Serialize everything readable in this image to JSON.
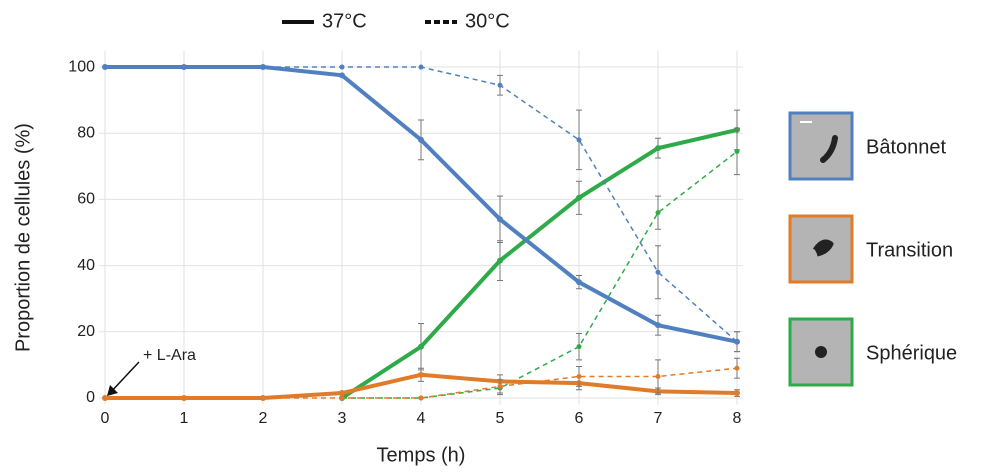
{
  "chart_data": {
    "type": "line",
    "xlabel": "Temps (h)",
    "ylabel": "Proportion de cellules (%)",
    "x": [
      0,
      1,
      2,
      3,
      4,
      5,
      6,
      7,
      8
    ],
    "xlim": [
      0,
      8
    ],
    "xticks": [
      0,
      1,
      2,
      3,
      4,
      5,
      6,
      7,
      8
    ],
    "ylim": [
      -2,
      105
    ],
    "yticks": [
      0,
      20,
      40,
      60,
      80,
      100
    ],
    "grid": true,
    "annotation": {
      "text": "+ L-Ara",
      "x": 0,
      "y": 0
    },
    "line_legend": [
      {
        "label": "37°C",
        "style": "solid"
      },
      {
        "label": "30°C",
        "style": "dashed"
      }
    ],
    "series": [
      {
        "name": "Bâtonnet",
        "color": "#5080c0",
        "lines": [
          {
            "style": "solid",
            "values": [
              100,
              100,
              100,
              97.5,
              78,
              54,
              35,
              22,
              17
            ],
            "errors": [
              null,
              null,
              null,
              null,
              6,
              7,
              2,
              3,
              3
            ]
          },
          {
            "style": "dashed",
            "values": [
              100,
              100,
              100,
              100,
              100,
              94.5,
              78,
              38,
              17
            ],
            "errors": [
              null,
              null,
              null,
              null,
              null,
              3,
              9,
              8,
              3
            ]
          }
        ]
      },
      {
        "name": "Transition",
        "color": "#e07b2a",
        "lines": [
          {
            "style": "solid",
            "values": [
              0,
              0,
              0,
              1.5,
              7,
              5,
              4.5,
              2,
              1.5
            ],
            "errors": [
              null,
              null,
              null,
              null,
              2,
              2,
              2,
              1,
              1
            ]
          },
          {
            "style": "dashed",
            "values": [
              0,
              0,
              0,
              0,
              0,
              3.5,
              6.5,
              6.5,
              9
            ],
            "errors": [
              null,
              null,
              null,
              null,
              null,
              2,
              3,
              5,
              3
            ]
          }
        ]
      },
      {
        "name": "Sphérique",
        "color": "#2eaa48",
        "lines": [
          {
            "style": "solid",
            "values": [
              null,
              null,
              null,
              0,
              15.5,
              41.5,
              60.5,
              75.5,
              81
            ],
            "errors": [
              null,
              null,
              null,
              null,
              7,
              6,
              5,
              3,
              6
            ]
          },
          {
            "style": "dashed",
            "values": [
              null,
              null,
              null,
              0,
              0,
              3,
              15.5,
              56,
              74.5
            ],
            "errors": [
              null,
              null,
              null,
              null,
              null,
              2,
              4,
              5,
              7
            ]
          }
        ]
      }
    ]
  }
}
